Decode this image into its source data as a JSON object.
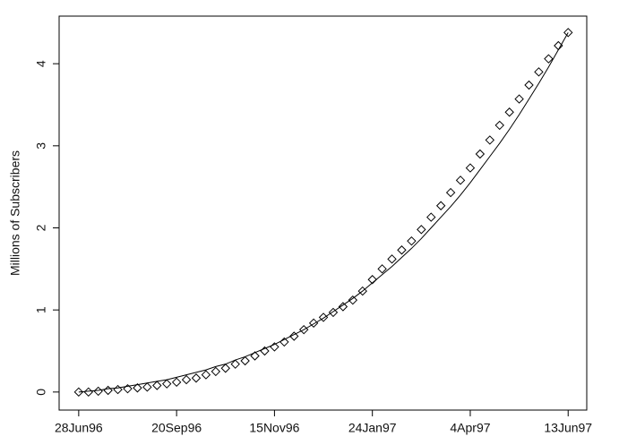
{
  "chart_data": {
    "type": "scatter",
    "y_label": "Millions of Subscribers",
    "categories": [
      "28Jun96",
      null,
      null,
      null,
      null,
      null,
      null,
      null,
      null,
      null,
      "20Sep96",
      null,
      null,
      null,
      null,
      null,
      null,
      null,
      null,
      null,
      "15Nov96",
      null,
      null,
      null,
      null,
      null,
      null,
      null,
      null,
      null,
      "24Jan97",
      null,
      null,
      null,
      null,
      null,
      null,
      null,
      null,
      null,
      "4Apr97",
      null,
      null,
      null,
      null,
      null,
      null,
      null,
      null,
      null,
      "13Jun97"
    ],
    "series": [
      {
        "type": "scatter",
        "marker": "diamond",
        "color": "#000000",
        "values": [
          0,
          0.0,
          0.01,
          0.02,
          0.03,
          0.04,
          0.05,
          0.06,
          0.08,
          0.1,
          0.12,
          0.15,
          0.17,
          0.21,
          0.25,
          0.29,
          0.34,
          0.38,
          0.44,
          0.5,
          0.55,
          0.61,
          0.68,
          0.76,
          0.84,
          0.91,
          0.97,
          1.04,
          1.12,
          1.23,
          1.37,
          1.5,
          1.62,
          1.73,
          1.84,
          1.98,
          2.13,
          2.27,
          2.43,
          2.58,
          2.73,
          2.9,
          3.07,
          3.25,
          3.41,
          3.57,
          3.74,
          3.9,
          4.06,
          4.22,
          4.38
        ]
      },
      {
        "type": "line",
        "color": "#000000",
        "values": [
          0,
          0.01,
          0.02,
          0.04,
          0.05,
          0.07,
          0.09,
          0.11,
          0.13,
          0.15,
          0.18,
          0.21,
          0.24,
          0.27,
          0.31,
          0.34,
          0.39,
          0.43,
          0.48,
          0.53,
          0.58,
          0.64,
          0.7,
          0.76,
          0.83,
          0.9,
          0.98,
          1.06,
          1.14,
          1.23,
          1.33,
          1.43,
          1.53,
          1.64,
          1.75,
          1.87,
          2.0,
          2.13,
          2.26,
          2.4,
          2.55,
          2.71,
          2.87,
          3.03,
          3.2,
          3.38,
          3.57,
          3.76,
          3.96,
          4.17,
          4.38
        ]
      }
    ],
    "ylim": [
      -0.22,
      4.58
    ],
    "yticks": [
      0,
      1,
      2,
      3,
      4
    ],
    "grid": false
  }
}
